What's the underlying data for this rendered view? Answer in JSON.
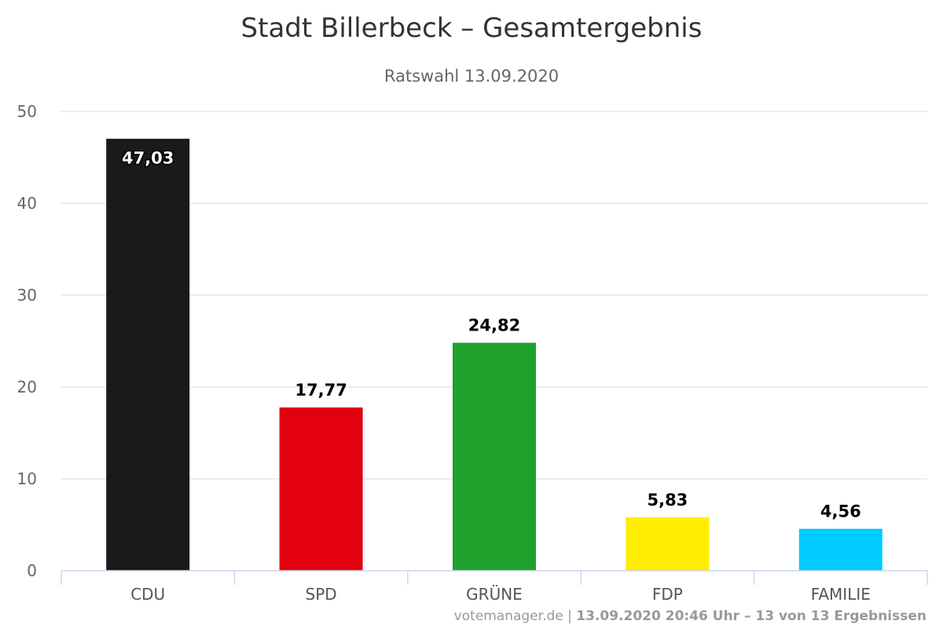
{
  "chart_data": {
    "type": "bar",
    "title": "Stadt Billerbeck – Gesamtergebnis",
    "subtitle": "Ratswahl 13.09.2020",
    "categories": [
      "CDU",
      "SPD",
      "GRÜNE",
      "FDP",
      "FAMILIE"
    ],
    "values": [
      47.03,
      17.77,
      24.82,
      5.83,
      4.56
    ],
    "data_labels": [
      "47,03",
      "17,77",
      "24,82",
      "5,83",
      "4,56"
    ],
    "colors": [
      "#1a1a1a",
      "#e3000f",
      "#1fa12e",
      "#ffed00",
      "#00ccff"
    ],
    "ylim": [
      0,
      50
    ],
    "yticks": [
      0,
      10,
      20,
      30,
      40,
      50
    ],
    "grid": true,
    "legend": "none"
  },
  "credits": {
    "source": "votemanager.de",
    "status": "13.09.2020 20:46 Uhr – 13 von 13 Ergebnissen"
  }
}
